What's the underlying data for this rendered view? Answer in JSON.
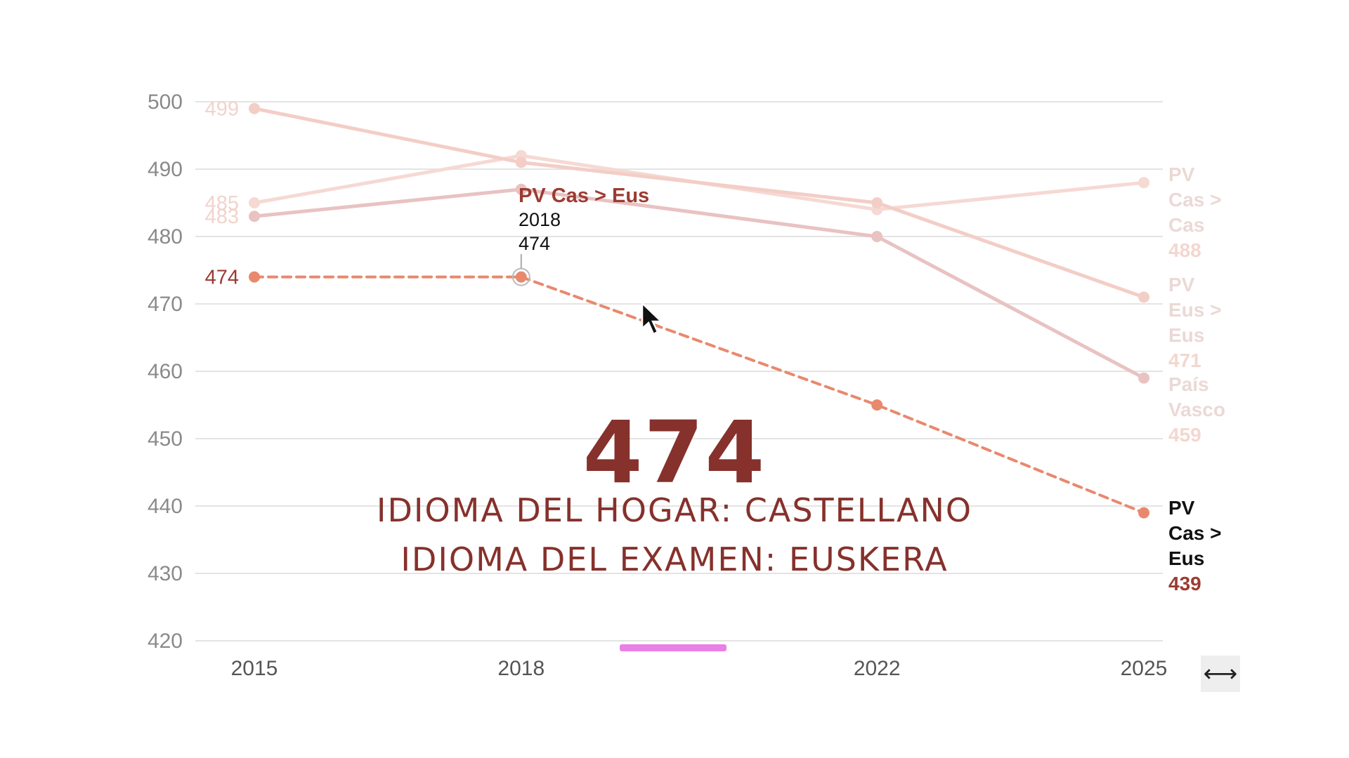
{
  "chart_data": {
    "type": "line",
    "title": "",
    "xlabel": "",
    "ylabel": "",
    "x": [
      2015,
      2018,
      2022,
      2025
    ],
    "ylim": [
      420,
      500
    ],
    "yticks": [
      500,
      490,
      480,
      470,
      460,
      450,
      440,
      430,
      420
    ],
    "grid": true,
    "series": [
      {
        "name": "PV Cas > Eus",
        "name_lines": [
          "PV",
          "Cas >",
          "Eus"
        ],
        "values": [
          474,
          474,
          455,
          439
        ],
        "start_label": "474",
        "end_label": "439",
        "color": "#e8896e",
        "label_color": "#9c3b32",
        "highlighted": true
      },
      {
        "name": "PV Cas > Cas",
        "name_lines": [
          "PV",
          "Cas >",
          "Cas"
        ],
        "values": [
          485,
          492,
          484,
          488
        ],
        "start_label": "485",
        "end_label": "488",
        "color": "#f6d9d3",
        "highlighted": false
      },
      {
        "name": "PV Eus > Eus",
        "name_lines": [
          "PV",
          "Eus >",
          "Eus"
        ],
        "values": [
          499,
          491,
          485,
          471
        ],
        "start_label": "499",
        "end_label": "471",
        "color": "#f3cec6",
        "highlighted": false
      },
      {
        "name": "País Vasco",
        "name_lines": [
          "País",
          "Vasco"
        ],
        "values": [
          483,
          487,
          480,
          459
        ],
        "start_label": "483",
        "end_label": "459",
        "color": "#e9c2c2",
        "highlighted": false
      }
    ],
    "tooltip": {
      "series": "PV Cas > Eus",
      "year": "2018",
      "value": "474"
    }
  },
  "overlay": {
    "big_value": "474",
    "caption_line1": "IDIOMA DEL HOGAR: CASTELLANO",
    "caption_line2": "IDIOMA DEL EXAMEN: EUSKERA"
  },
  "controls": {
    "expand_icon": "⟷"
  },
  "colors": {
    "accent": "#86312c",
    "highlight_line": "#e8896e",
    "scrub_bar": "#ea7fe6"
  }
}
